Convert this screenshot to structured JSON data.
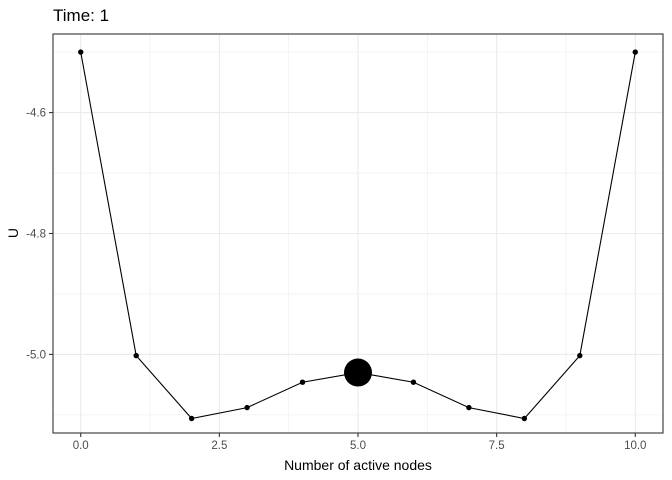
{
  "chart_data": {
    "type": "line",
    "title": "Time: 1",
    "xlabel": "Number of active nodes",
    "ylabel": "U",
    "xlim": [
      -0.5,
      10.5
    ],
    "ylim": [
      -5.13,
      -4.47
    ],
    "xticks": [
      0,
      2.5,
      5,
      7.5,
      10
    ],
    "xtick_labels": [
      "0.0",
      "2.5",
      "5.0",
      "7.5",
      "10.0"
    ],
    "yticks": [
      -4.6,
      -4.8,
      -5.0
    ],
    "ytick_labels": [
      "-4.6",
      "-4.8",
      "-5.0"
    ],
    "grid": true,
    "x": [
      0,
      1,
      2,
      3,
      4,
      5,
      6,
      7,
      8,
      9,
      10
    ],
    "y": [
      -4.5,
      -5.002,
      -5.106,
      -5.088,
      -5.046,
      -5.03,
      -5.046,
      -5.088,
      -5.106,
      -5.002,
      -4.5
    ],
    "highlight": {
      "x": 5,
      "y": -5.03
    },
    "colors": {
      "line": "#000000",
      "point": "#000000",
      "grid": "#ebebeb",
      "panel_border": "#333333"
    }
  }
}
